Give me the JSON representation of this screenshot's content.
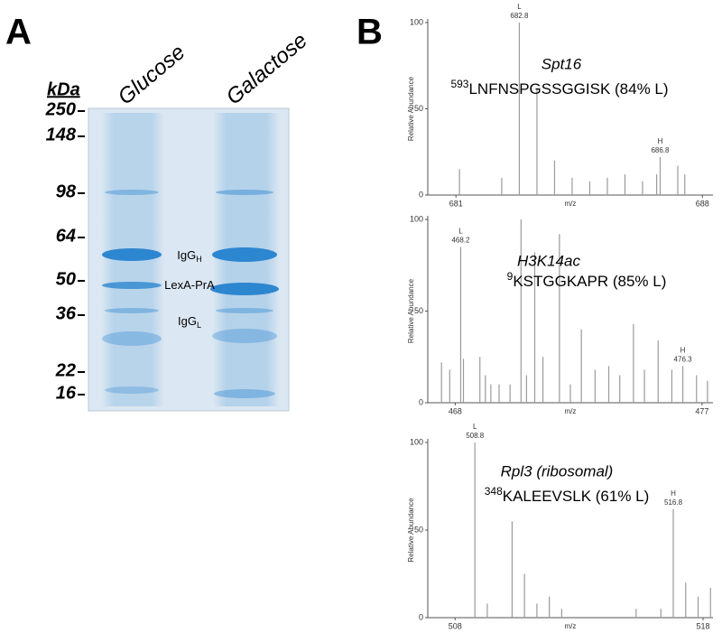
{
  "panel_a": {
    "letter": "A",
    "unit": "kDa",
    "markers": [
      250,
      148,
      98,
      64,
      50,
      36,
      22,
      16
    ],
    "lanes": [
      "Glucose",
      "Galactose"
    ],
    "bands": [
      {
        "text": "IgG",
        "sub": "H"
      },
      {
        "text": "LexA-PrA"
      },
      {
        "text": "IgG",
        "sub": "L"
      }
    ]
  },
  "panel_b": {
    "letter": "B"
  },
  "chart_data": [
    {
      "type": "spectrum",
      "title": "Spt16",
      "peptide_position": "593",
      "peptide": "LNFNSPGSSGGISK (84% L)",
      "x_label": "m/z",
      "y_label": "Relative Abundance",
      "xlim": [
        680.2,
        688.3
      ],
      "xticks": [
        681,
        688
      ],
      "ylim": [
        0,
        100
      ],
      "yticks": [
        0,
        50,
        100
      ],
      "color": "#9a9a9a",
      "x": [
        681.1,
        682.3,
        682.8,
        683.3,
        683.8,
        684.3,
        684.8,
        685.3,
        685.8,
        686.3,
        686.7,
        686.8,
        687.3,
        687.5
      ],
      "values": [
        15,
        10,
        100,
        62,
        20,
        10,
        8,
        10,
        12,
        8,
        12,
        22,
        17,
        12
      ],
      "peak_labels": [
        {
          "text": "L",
          "x": 682.8,
          "y": 100
        },
        {
          "text": "H",
          "x": 686.8,
          "y": 22
        }
      ]
    },
    {
      "type": "spectrum",
      "title": "H3K14ac",
      "peptide_position": "9",
      "peptide": "KSTGGKAPR (85% L)",
      "x_label": "m/z",
      "y_label": "Relative Abundance",
      "xlim": [
        467.0,
        477.4
      ],
      "xticks": [
        468,
        477
      ],
      "ylim": [
        0,
        100
      ],
      "yticks": [
        0,
        50,
        100
      ],
      "color": "#9a9a9a",
      "x": [
        467.5,
        467.8,
        468.2,
        468.3,
        468.9,
        469.1,
        469.3,
        469.6,
        470.0,
        470.4,
        470.6,
        470.9,
        471.2,
        471.8,
        472.2,
        472.6,
        473.1,
        473.6,
        474.0,
        474.5,
        474.9,
        475.4,
        475.9,
        476.3,
        476.8,
        477.2
      ],
      "values": [
        22,
        18,
        85,
        24,
        25,
        15,
        10,
        10,
        10,
        100,
        15,
        82,
        25,
        92,
        10,
        40,
        18,
        20,
        15,
        43,
        18,
        34,
        18,
        20,
        15,
        12
      ],
      "peak_labels": [
        {
          "text": "L",
          "x": 468.2,
          "y": 85
        },
        {
          "text": "H",
          "x": 476.3,
          "y": 20
        }
      ]
    },
    {
      "type": "spectrum",
      "title": "Rpl3 (ribosomal)",
      "peptide_position": "348",
      "peptide": "KALEEVSLK (61% L)",
      "x_label": "m/z",
      "y_label": "Relative Abundance",
      "xlim": [
        506.9,
        518.4
      ],
      "xticks": [
        508,
        518
      ],
      "ylim": [
        0,
        100
      ],
      "yticks": [
        0,
        50,
        100
      ],
      "color": "#9a9a9a",
      "x": [
        508.8,
        509.3,
        510.3,
        510.8,
        511.3,
        511.8,
        512.3,
        515.3,
        516.3,
        516.8,
        517.3,
        517.8,
        518.3
      ],
      "values": [
        100,
        8,
        55,
        25,
        8,
        12,
        5,
        5,
        5,
        62,
        20,
        12,
        17
      ],
      "peak_labels": [
        {
          "text": "L",
          "x": 508.8,
          "y": 100
        },
        {
          "text": "H",
          "x": 516.8,
          "y": 62
        }
      ]
    }
  ]
}
